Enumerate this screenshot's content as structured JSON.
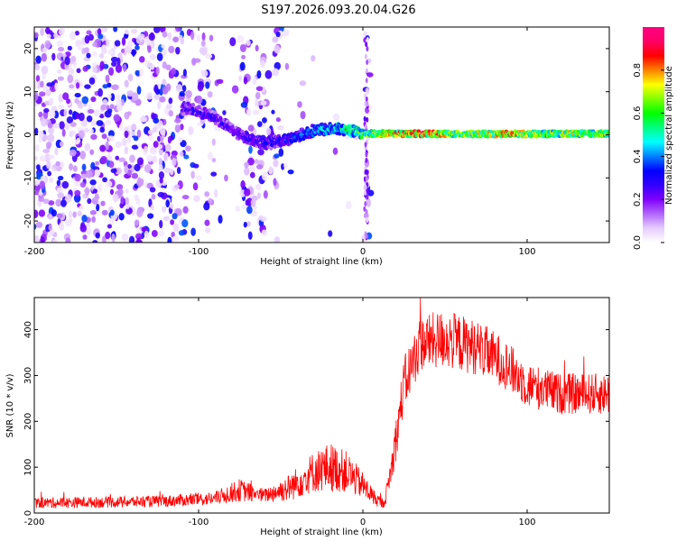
{
  "figure": {
    "title": "S197.2026.093.20.04.G26"
  },
  "colors": {
    "snr_line": "#ff0000",
    "axis": "#000000"
  },
  "chart_data": [
    {
      "type": "heatmap",
      "panel": "spectrogram",
      "xlabel": "Height of straight line (km)",
      "ylabel": "Frequency (Hz)",
      "xlim": [
        -200,
        150
      ],
      "ylim": [
        -25,
        25
      ],
      "xticks": [
        -200,
        -100,
        0,
        100
      ],
      "yticks": [
        -20,
        -10,
        0,
        10,
        20
      ],
      "colorbar": {
        "label": "Normalized spectral amplitude",
        "range": [
          0,
          1
        ],
        "ticks": [
          0,
          0.2,
          0.4,
          0.6,
          0.8
        ],
        "colormap": [
          "#ffffff",
          "#e6ccff",
          "#b266ff",
          "#8000ff",
          "#3300ff",
          "#0000ff",
          "#0080ff",
          "#00ffff",
          "#00ff80",
          "#00ff00",
          "#80ff00",
          "#ffff00",
          "#ff8000",
          "#ff0000",
          "#ff0066",
          "#ff0080"
        ]
      },
      "ridge": [
        {
          "x": -105,
          "y": 6
        },
        {
          "x": -90,
          "y": 4
        },
        {
          "x": -75,
          "y": 0
        },
        {
          "x": -60,
          "y": -2
        },
        {
          "x": -45,
          "y": -1
        },
        {
          "x": -30,
          "y": 1
        },
        {
          "x": -15,
          "y": 1.5
        },
        {
          "x": 0,
          "y": 0.3
        },
        {
          "x": 50,
          "y": 0.2
        },
        {
          "x": 100,
          "y": 0.2
        },
        {
          "x": 150,
          "y": 0.3
        }
      ],
      "ridge_amplitude": [
        {
          "x": -105,
          "a": 0.3
        },
        {
          "x": -80,
          "a": 0.3
        },
        {
          "x": -50,
          "a": 0.35
        },
        {
          "x": -20,
          "a": 0.5
        },
        {
          "x": 0,
          "a": 0.65
        },
        {
          "x": 30,
          "a": 0.95
        },
        {
          "x": 60,
          "a": 0.7
        },
        {
          "x": 90,
          "a": 0.85
        },
        {
          "x": 110,
          "a": 0.7
        },
        {
          "x": 130,
          "a": 0.75
        },
        {
          "x": 150,
          "a": 0.7
        }
      ]
    },
    {
      "type": "line",
      "panel": "snr",
      "xlabel": "Height of straight line (km)",
      "ylabel": "SNR (10 * v/v)",
      "xlim": [
        -200,
        150
      ],
      "ylim": [
        0,
        470
      ],
      "xticks": [
        -200,
        -100,
        0,
        100
      ],
      "yticks": [
        0,
        100,
        200,
        300,
        400
      ],
      "series": [
        {
          "envelope": [
            {
              "x": -200,
              "mean": 22,
              "spread": 12
            },
            {
              "x": -150,
              "mean": 24,
              "spread": 12
            },
            {
              "x": -120,
              "mean": 26,
              "spread": 13
            },
            {
              "x": -90,
              "mean": 32,
              "spread": 15
            },
            {
              "x": -75,
              "mean": 50,
              "spread": 25
            },
            {
              "x": -60,
              "mean": 38,
              "spread": 15
            },
            {
              "x": -45,
              "mean": 55,
              "spread": 30
            },
            {
              "x": -30,
              "mean": 90,
              "spread": 45
            },
            {
              "x": -20,
              "mean": 100,
              "spread": 55
            },
            {
              "x": -10,
              "mean": 90,
              "spread": 45
            },
            {
              "x": 0,
              "mean": 60,
              "spread": 30
            },
            {
              "x": 8,
              "mean": 30,
              "spread": 15
            },
            {
              "x": 13,
              "mean": 20,
              "spread": 10
            },
            {
              "x": 18,
              "mean": 110,
              "spread": 40
            },
            {
              "x": 25,
              "mean": 280,
              "spread": 60
            },
            {
              "x": 35,
              "mean": 370,
              "spread": 60
            },
            {
              "x": 50,
              "mean": 380,
              "spread": 65
            },
            {
              "x": 70,
              "mean": 360,
              "spread": 60
            },
            {
              "x": 85,
              "mean": 330,
              "spread": 55
            },
            {
              "x": 100,
              "mean": 280,
              "spread": 50
            },
            {
              "x": 120,
              "mean": 260,
              "spread": 45
            },
            {
              "x": 150,
              "mean": 260,
              "spread": 45
            }
          ]
        }
      ]
    }
  ]
}
